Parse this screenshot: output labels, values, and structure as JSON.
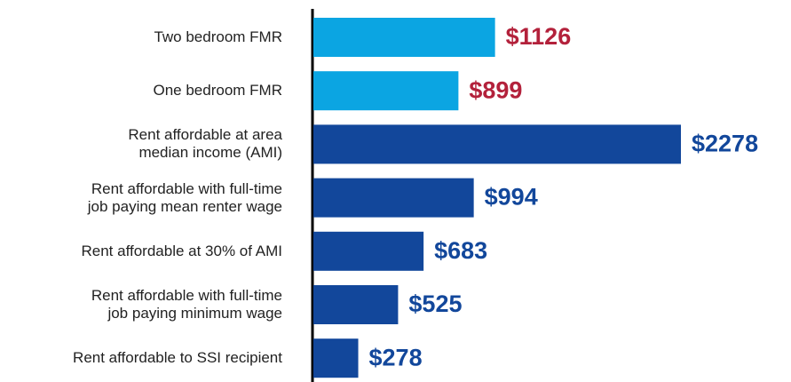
{
  "chart_data": {
    "type": "barh",
    "categories": [
      "Two bedroom FMR",
      "One bedroom FMR",
      "Rent affordable at area\nmedian income (AMI)",
      "Rent affordable with full-time\njob paying mean renter wage",
      "Rent affordable at 30% of AMI",
      "Rent affordable with full-time\njob paying minimum wage",
      "Rent affordable to SSI recipient"
    ],
    "values": [
      1126,
      899,
      2278,
      994,
      683,
      525,
      278
    ],
    "value_labels": [
      "$1126",
      "$899",
      "$2278",
      "$994",
      "$683",
      "$525",
      "$278"
    ],
    "colors": [
      "#0ba5e2",
      "#0ba5e2",
      "#12479b",
      "#12479b",
      "#12479b",
      "#12479b",
      "#12479b"
    ],
    "label_colors": [
      "#b3213b",
      "#b3213b",
      "#12479b",
      "#12479b",
      "#12479b",
      "#12479b",
      "#12479b"
    ]
  }
}
